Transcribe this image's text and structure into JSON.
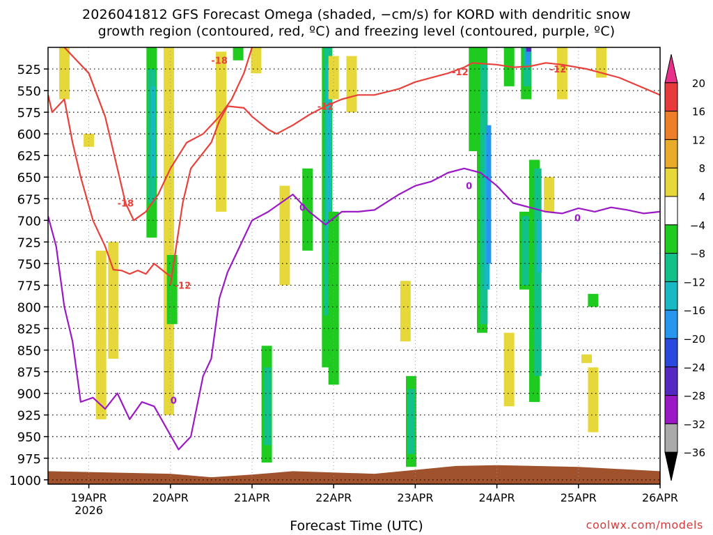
{
  "title_line1": "2026041812 GFS Forecast Omega (shaded, −cm/s) for KORD with dendritic snow",
  "title_line2": "growth region (contoured, red, ºC) and freezing level (contoured, purple, ºC)",
  "credit": "coolwx.com/models",
  "chart_data": {
    "type": "heatmap",
    "xlabel": "Forecast Time (UTC)",
    "x_range": [
      "2026-04-18 12Z",
      "2026-04-26 00Z"
    ],
    "x_ticks": [
      {
        "label": "19APR",
        "sub": "2026",
        "x": "2026-04-19 00Z"
      },
      {
        "label": "20APR",
        "sub": "",
        "x": "2026-04-20 00Z"
      },
      {
        "label": "21APR",
        "sub": "",
        "x": "2026-04-21 00Z"
      },
      {
        "label": "22APR",
        "sub": "",
        "x": "2026-04-22 00Z"
      },
      {
        "label": "23APR",
        "sub": "",
        "x": "2026-04-23 00Z"
      },
      {
        "label": "24APR",
        "sub": "",
        "x": "2026-04-24 00Z"
      },
      {
        "label": "25APR",
        "sub": "",
        "x": "2026-04-25 00Z"
      },
      {
        "label": "26APR",
        "sub": "",
        "x": "2026-04-26 00Z"
      }
    ],
    "y_axis": "pressure (hPa, inverted)",
    "y_range": [
      1005,
      500
    ],
    "y_ticks": [
      525,
      550,
      575,
      600,
      625,
      650,
      675,
      700,
      725,
      750,
      775,
      800,
      825,
      850,
      875,
      900,
      925,
      950,
      975,
      1000
    ],
    "grid": "dotted",
    "colorbar": {
      "labels": [
        20,
        16,
        12,
        8,
        4,
        -4,
        -8,
        -12,
        -16,
        -20,
        -24,
        -28,
        -32,
        -36
      ],
      "colors": [
        "#e8308a",
        "#e83a3a",
        "#ee7f28",
        "#e9ab2a",
        "#e6d83a",
        "#ffffff",
        "#1ecb1e",
        "#12c08a",
        "#16b9c4",
        "#2896ee",
        "#2a48de",
        "#5628c2",
        "#9a18c6",
        "#aaaaaa",
        "#000000"
      ]
    },
    "omega_regions": [
      {
        "day": 0.2,
        "p_top": 500,
        "p_bottom": 560,
        "level": 4
      },
      {
        "day": 0.5,
        "p_top": 600,
        "p_bottom": 615,
        "level": 4
      },
      {
        "day": 0.65,
        "p_top": 735,
        "p_bottom": 930,
        "level": 4
      },
      {
        "day": 0.8,
        "p_top": 725,
        "p_bottom": 860,
        "level": 4
      },
      {
        "day": 1.27,
        "p_top": 500,
        "p_bottom": 720,
        "level": -4
      },
      {
        "day": 1.27,
        "p_top": 525,
        "p_bottom": 680,
        "level": -8
      },
      {
        "day": 1.29,
        "p_top": 545,
        "p_bottom": 650,
        "level": -12
      },
      {
        "day": 1.48,
        "p_top": 500,
        "p_bottom": 610,
        "level": 4
      },
      {
        "day": 1.48,
        "p_top": 610,
        "p_bottom": 925,
        "level": 4
      },
      {
        "day": 1.52,
        "p_top": 740,
        "p_bottom": 820,
        "level": -4
      },
      {
        "day": 2.12,
        "p_top": 505,
        "p_bottom": 690,
        "level": 4
      },
      {
        "day": 2.33,
        "p_top": 500,
        "p_bottom": 515,
        "level": -4
      },
      {
        "day": 2.55,
        "p_top": 500,
        "p_bottom": 530,
        "level": 4
      },
      {
        "day": 2.68,
        "p_top": 845,
        "p_bottom": 980,
        "level": -4
      },
      {
        "day": 2.69,
        "p_top": 870,
        "p_bottom": 960,
        "level": -8
      },
      {
        "day": 2.9,
        "p_top": 660,
        "p_bottom": 775,
        "level": 4
      },
      {
        "day": 3.18,
        "p_top": 640,
        "p_bottom": 735,
        "level": -4
      },
      {
        "day": 3.42,
        "p_top": 500,
        "p_bottom": 870,
        "level": -4
      },
      {
        "day": 3.43,
        "p_top": 500,
        "p_bottom": 810,
        "level": -8
      },
      {
        "day": 3.44,
        "p_top": 520,
        "p_bottom": 710,
        "level": -12
      },
      {
        "day": 3.5,
        "p_top": 510,
        "p_bottom": 560,
        "level": 4
      },
      {
        "day": 3.5,
        "p_top": 690,
        "p_bottom": 890,
        "level": -4
      },
      {
        "day": 3.72,
        "p_top": 510,
        "p_bottom": 575,
        "level": 4
      },
      {
        "day": 4.38,
        "p_top": 770,
        "p_bottom": 840,
        "level": 4
      },
      {
        "day": 4.45,
        "p_top": 880,
        "p_bottom": 985,
        "level": -4
      },
      {
        "day": 4.45,
        "p_top": 895,
        "p_bottom": 970,
        "level": -8
      },
      {
        "day": 5.22,
        "p_top": 500,
        "p_bottom": 620,
        "level": -4
      },
      {
        "day": 5.32,
        "p_top": 500,
        "p_bottom": 830,
        "level": -4
      },
      {
        "day": 5.34,
        "p_top": 520,
        "p_bottom": 820,
        "level": -8
      },
      {
        "day": 5.38,
        "p_top": 600,
        "p_bottom": 780,
        "level": -12
      },
      {
        "day": 5.4,
        "p_top": 590,
        "p_bottom": 750,
        "level": -16
      },
      {
        "day": 5.65,
        "p_top": 500,
        "p_bottom": 545,
        "level": -4
      },
      {
        "day": 5.86,
        "p_top": 500,
        "p_bottom": 560,
        "level": -4
      },
      {
        "day": 5.87,
        "p_top": 500,
        "p_bottom": 545,
        "level": -8
      },
      {
        "day": 5.88,
        "p_top": 500,
        "p_bottom": 520,
        "level": -16
      },
      {
        "day": 5.89,
        "p_top": 500,
        "p_bottom": 505,
        "level": -24
      },
      {
        "day": 5.84,
        "p_top": 690,
        "p_bottom": 780,
        "level": -4
      },
      {
        "day": 5.85,
        "p_top": 695,
        "p_bottom": 775,
        "level": -8
      },
      {
        "day": 5.96,
        "p_top": 630,
        "p_bottom": 910,
        "level": -4
      },
      {
        "day": 6.0,
        "p_top": 640,
        "p_bottom": 880,
        "level": -8
      },
      {
        "day": 6.02,
        "p_top": 700,
        "p_bottom": 760,
        "level": -12
      },
      {
        "day": 6.14,
        "p_top": 650,
        "p_bottom": 690,
        "level": 4
      },
      {
        "day": 5.65,
        "p_top": 830,
        "p_bottom": 915,
        "level": 4
      },
      {
        "day": 6.3,
        "p_top": 500,
        "p_bottom": 560,
        "level": 4
      },
      {
        "day": 6.6,
        "p_top": 855,
        "p_bottom": 865,
        "level": 4
      },
      {
        "day": 6.68,
        "p_top": 785,
        "p_bottom": 800,
        "level": -4
      },
      {
        "day": 6.68,
        "p_top": 870,
        "p_bottom": 945,
        "level": 4
      },
      {
        "day": 6.78,
        "p_top": 500,
        "p_bottom": 535,
        "level": 4
      }
    ],
    "series": [
      {
        "name": "-12",
        "segments": [
          {
            "x": [
              0.0,
              0.05,
              0.2,
              0.3,
              0.4,
              0.55,
              0.7,
              0.8,
              0.9,
              1.0,
              1.1,
              1.2,
              1.3,
              1.5
            ],
            "p": [
              555,
              575,
              560,
              610,
              650,
              700,
              730,
              757,
              758,
              762,
              758,
              762,
              750,
              765
            ]
          },
          {
            "x": [
              1.5,
              1.65,
              1.75,
              2.0,
              2.1,
              2.2,
              2.4,
              2.5,
              2.7,
              2.8,
              3.0,
              3.2,
              3.4,
              3.6,
              3.8,
              4.0,
              4.3,
              4.5,
              4.9,
              5.1,
              5.2,
              5.5,
              5.7,
              5.9,
              6.1,
              6.3,
              6.6,
              6.8,
              7.0,
              7.5
            ],
            "p": [
              775,
              680,
              640,
              610,
              585,
              568,
              570,
              580,
              595,
              600,
              590,
              578,
              568,
              560,
              555,
              555,
              548,
              540,
              530,
              523,
              518,
              520,
              523,
              522,
              518,
              520,
              525,
              530,
              535,
              555
            ]
          }
        ]
      },
      {
        "name": "-18",
        "segments": [
          {
            "x": [
              0.2,
              0.5,
              0.7,
              0.85,
              0.95,
              1.05,
              1.2,
              1.35,
              1.5,
              1.7,
              1.9,
              2.1,
              2.25,
              2.4,
              2.5
            ],
            "p": [
              500,
              530,
              580,
              640,
              680,
              700,
              690,
              670,
              640,
              610,
              600,
              580,
              560,
              530,
              500
            ]
          }
        ]
      },
      {
        "name": "0",
        "segments": [
          {
            "x": [
              0.0,
              0.1,
              0.2,
              0.3,
              0.4,
              0.55,
              0.7,
              0.85,
              1.0,
              1.15,
              1.3,
              1.45,
              1.6,
              1.75,
              1.9,
              2.0,
              2.1,
              2.2,
              2.35,
              2.5,
              2.7,
              2.85,
              3.0,
              3.2,
              3.4,
              3.6,
              3.8,
              4.0,
              4.3,
              4.5,
              4.7,
              4.9,
              5.1,
              5.3,
              5.5,
              5.7,
              5.9,
              6.1,
              6.3,
              6.5,
              6.7,
              6.9,
              7.1,
              7.3,
              7.5
            ],
            "p": [
              695,
              730,
              800,
              840,
              910,
              905,
              918,
              900,
              930,
              910,
              915,
              940,
              965,
              950,
              880,
              860,
              790,
              760,
              730,
              700,
              690,
              680,
              670,
              690,
              705,
              690,
              690,
              688,
              670,
              660,
              655,
              645,
              640,
              645,
              660,
              680,
              685,
              690,
              692,
              686,
              690,
              685,
              688,
              692,
              690
            ]
          }
        ]
      }
    ],
    "contour_labels": [
      {
        "text": "-18",
        "x": 2.0,
        "p": 515,
        "series": "-18"
      },
      {
        "text": "-18",
        "x": 0.85,
        "p": 680,
        "series": "-18"
      },
      {
        "text": "-12",
        "x": 1.55,
        "p": 775,
        "series": "-12"
      },
      {
        "text": "-12",
        "x": 3.3,
        "p": 568,
        "series": "-12"
      },
      {
        "text": "-12",
        "x": 4.95,
        "p": 528,
        "series": "-12"
      },
      {
        "text": "-12",
        "x": 6.15,
        "p": 525,
        "series": "-12"
      },
      {
        "text": "0",
        "x": 1.5,
        "p": 908,
        "series": "0"
      },
      {
        "text": "0",
        "x": 3.08,
        "p": 685,
        "series": "0"
      },
      {
        "text": "0",
        "x": 5.12,
        "p": 660,
        "series": "0"
      },
      {
        "text": "0",
        "x": 6.45,
        "p": 697,
        "series": "0"
      }
    ],
    "colors": {
      "ground": "#a0522d",
      "dgz": "#e8403a",
      "freezing": "#9a18c6"
    }
  }
}
